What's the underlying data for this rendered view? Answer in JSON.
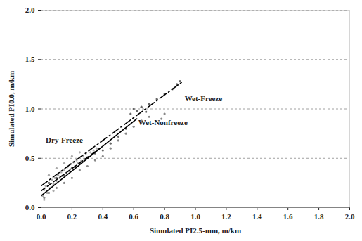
{
  "chart_data": {
    "type": "scatter",
    "x_label": "Simulated PI2.5-mm, m/km",
    "y_label": "Simulated PI0.0, m/km",
    "xlim": [
      0,
      2.0
    ],
    "ylim": [
      0,
      2.0
    ],
    "xticks": [
      {
        "value": 0,
        "label": "0.0"
      },
      {
        "value": 0.2,
        "label": "0.2"
      },
      {
        "value": 0.4,
        "label": "0.4"
      },
      {
        "value": 0.6,
        "label": "0.6"
      },
      {
        "value": 0.8,
        "label": "0.8"
      },
      {
        "value": 1,
        "label": "1.0"
      },
      {
        "value": 1.2,
        "label": "1.2"
      },
      {
        "value": 1.4,
        "label": "1.4"
      },
      {
        "value": 1.6,
        "label": "1.6"
      },
      {
        "value": 1.8,
        "label": "1.8"
      },
      {
        "value": 2,
        "label": "2.0"
      }
    ],
    "yticks": [
      {
        "value": 0,
        "label": "0.0"
      },
      {
        "value": 0.5,
        "label": "0.5"
      },
      {
        "value": 1,
        "label": "1.0"
      },
      {
        "value": 1.5,
        "label": "1.5"
      },
      {
        "value": 2,
        "label": "2.0"
      }
    ],
    "grid": "y",
    "series": [
      {
        "name": "Dry-Freeze",
        "color": "#aaaaaa",
        "marker": "circle",
        "x": [
          0.01,
          0.02,
          0.03,
          0.04,
          0.05,
          0.06,
          0.07,
          0.08,
          0.09,
          0.1,
          0.11,
          0.12,
          0.13,
          0.14,
          0.15,
          0.16,
          0.17,
          0.18,
          0.19,
          0.2,
          0.21,
          0.22,
          0.23,
          0.24,
          0.25,
          0.26,
          0.27,
          0.28,
          0.29,
          0.3,
          0.32,
          0.34,
          0.36,
          0.1,
          0.15,
          0.05,
          0.2,
          0.25,
          0.02,
          0.08
        ],
        "y": [
          0.12,
          0.18,
          0.22,
          0.15,
          0.25,
          0.2,
          0.28,
          0.24,
          0.3,
          0.27,
          0.33,
          0.3,
          0.36,
          0.32,
          0.38,
          0.35,
          0.41,
          0.37,
          0.44,
          0.4,
          0.46,
          0.42,
          0.48,
          0.45,
          0.5,
          0.47,
          0.52,
          0.49,
          0.55,
          0.51,
          0.56,
          0.58,
          0.6,
          0.4,
          0.45,
          0.33,
          0.52,
          0.56,
          0.08,
          0.17
        ],
        "fit": {
          "x": [
            0,
            0.38
          ],
          "y": [
            0.17,
            0.6
          ],
          "color": "#000000",
          "line_style": "dashed"
        }
      },
      {
        "name": "Wet-Freeze",
        "color": "#666666",
        "marker": "circle",
        "x": [
          0.05,
          0.1,
          0.15,
          0.2,
          0.25,
          0.3,
          0.35,
          0.4,
          0.45,
          0.5,
          0.55,
          0.58,
          0.6,
          0.62,
          0.65,
          0.68,
          0.7,
          0.75,
          0.8,
          0.85,
          0.88,
          0.9
        ],
        "y": [
          0.25,
          0.3,
          0.33,
          0.4,
          0.45,
          0.5,
          0.55,
          0.58,
          0.65,
          0.72,
          0.8,
          0.95,
          1.0,
          0.98,
          1.02,
          0.97,
          1.05,
          1.1,
          1.15,
          1.2,
          1.25,
          1.28
        ],
        "fit": {
          "x": [
            0,
            0.92
          ],
          "y": [
            0.22,
            1.28
          ],
          "color": "#000000",
          "line_style": "dashdot"
        }
      },
      {
        "name": "Wet-Nonfreeze",
        "color": "#888888",
        "marker": "circle",
        "x": [
          0.02,
          0.05,
          0.1,
          0.15,
          0.2,
          0.25,
          0.3,
          0.35,
          0.4,
          0.45,
          0.5,
          0.55,
          0.6,
          0.65,
          0.7,
          0.78,
          0.8
        ],
        "y": [
          0.1,
          0.15,
          0.2,
          0.25,
          0.3,
          0.38,
          0.42,
          0.48,
          0.52,
          0.6,
          0.68,
          0.75,
          0.82,
          0.88,
          0.92,
          0.9,
          0.95
        ],
        "fit": {
          "x": [
            0,
            0.62
          ],
          "y": [
            0.12,
            0.9
          ],
          "color": "#000000",
          "line_style": "solid"
        }
      }
    ],
    "annotations": [
      {
        "text": "Dry-Freeze",
        "x": 0.03,
        "y": 0.68
      },
      {
        "text": "Wet-Freeze",
        "x": 0.93,
        "y": 1.1
      },
      {
        "text": "Wet-Nonfreeze",
        "x": 0.63,
        "y": 0.86
      }
    ]
  }
}
